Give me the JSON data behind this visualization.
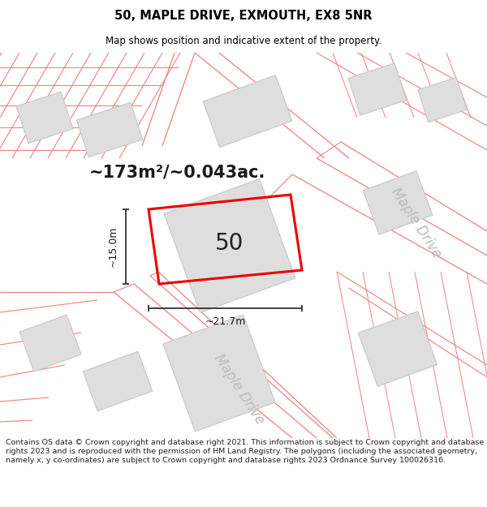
{
  "title_line1": "50, MAPLE DRIVE, EXMOUTH, EX8 5NR",
  "title_line2": "Map shows position and indicative extent of the property.",
  "area_text": "~173m²/~0.043ac.",
  "plot_number": "50",
  "dim_height": "~15.0m",
  "dim_width": "~21.7m",
  "street_label": "Maple Drive",
  "copyright_text": "Contains OS data © Crown copyright and database right 2021. This information is subject to Crown copyright and database rights 2023 and is reproduced with the permission of HM Land Registry. The polygons (including the associated geometry, namely x, y co-ordinates) are subject to Crown copyright and database rights 2023 Ordnance Survey 100026316.",
  "bg_color": "#ffffff",
  "map_bg": "#f7f7f7",
  "road_line_color": "#f08080",
  "dim_line_color": "#333333",
  "street_text_color": "#bbbbbb",
  "building_fill": "#dedede",
  "building_edge": "#c8c8c8",
  "plot_edge_color": "#ee0000",
  "title_fontsize": 10.5,
  "subtitle_fontsize": 8.5,
  "area_fontsize": 15,
  "plot_num_fontsize": 20,
  "dim_fontsize": 9,
  "street_fontsize": 12,
  "copyright_fontsize": 6.8
}
